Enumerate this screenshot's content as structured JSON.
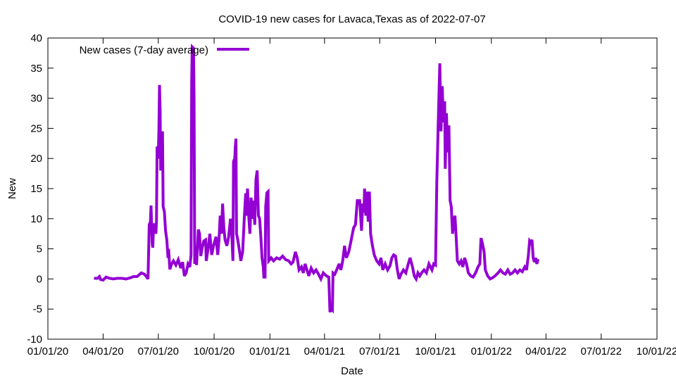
{
  "chart_data": {
    "type": "line",
    "title": "COVID-19 new cases for Lavaca,Texas as of 2022-07-07",
    "xlabel": "Date",
    "ylabel": "New",
    "x_range": [
      "2020-01-01",
      "2022-10-01"
    ],
    "x_ticks": [
      "01/01/20",
      "04/01/20",
      "07/01/20",
      "10/01/20",
      "01/01/21",
      "04/01/21",
      "07/01/21",
      "10/01/21",
      "01/01/22",
      "04/01/22",
      "07/01/22",
      "10/01/22"
    ],
    "ylim": [
      -10,
      40
    ],
    "y_ticks": [
      -10,
      -5,
      0,
      5,
      10,
      15,
      20,
      25,
      30,
      35,
      40
    ],
    "grid": false,
    "legend_position": "top-left",
    "series": [
      {
        "name": "New cases (7-day average)",
        "color": "#9400d3",
        "points": [
          [
            "2020-03-17",
            0.1
          ],
          [
            "2020-03-23",
            0.1
          ],
          [
            "2020-03-26",
            0.4
          ],
          [
            "2020-03-28",
            -0.1
          ],
          [
            "2020-04-01",
            -0.2
          ],
          [
            "2020-04-06",
            0.3
          ],
          [
            "2020-04-12",
            0.1
          ],
          [
            "2020-04-18",
            0.0
          ],
          [
            "2020-04-24",
            0.1
          ],
          [
            "2020-05-02",
            0.1
          ],
          [
            "2020-05-09",
            0.0
          ],
          [
            "2020-05-16",
            0.2
          ],
          [
            "2020-05-21",
            0.4
          ],
          [
            "2020-05-27",
            0.4
          ],
          [
            "2020-06-03",
            1.0
          ],
          [
            "2020-06-08",
            0.8
          ],
          [
            "2020-06-12",
            0.3
          ],
          [
            "2020-06-14",
            0.0
          ],
          [
            "2020-06-16",
            9.0
          ],
          [
            "2020-06-18",
            9.5
          ],
          [
            "2020-06-19",
            12.2
          ],
          [
            "2020-06-20",
            9.0
          ],
          [
            "2020-06-21",
            5.8
          ],
          [
            "2020-06-22",
            5.2
          ],
          [
            "2020-06-23",
            8.5
          ],
          [
            "2020-06-25",
            9.2
          ],
          [
            "2020-06-27",
            7.5
          ],
          [
            "2020-06-28",
            9.5
          ],
          [
            "2020-06-29",
            22.0
          ],
          [
            "2020-06-30",
            20.0
          ],
          [
            "2020-07-01",
            20.5
          ],
          [
            "2020-07-02",
            25.0
          ],
          [
            "2020-07-03",
            32.2
          ],
          [
            "2020-07-04",
            28.0
          ],
          [
            "2020-07-05",
            18.0
          ],
          [
            "2020-07-06",
            24.0
          ],
          [
            "2020-07-07",
            18.0
          ],
          [
            "2020-07-08",
            24.5
          ],
          [
            "2020-07-09",
            12.0
          ],
          [
            "2020-07-11",
            11.2
          ],
          [
            "2020-07-13",
            8.0
          ],
          [
            "2020-07-15",
            6.5
          ],
          [
            "2020-07-17",
            3.5
          ],
          [
            "2020-07-18",
            5.0
          ],
          [
            "2020-07-20",
            1.6
          ],
          [
            "2020-07-23",
            2.5
          ],
          [
            "2020-07-26",
            3.0
          ],
          [
            "2020-07-30",
            2.3
          ],
          [
            "2020-08-03",
            3.2
          ],
          [
            "2020-08-07",
            1.8
          ],
          [
            "2020-08-10",
            2.8
          ],
          [
            "2020-08-13",
            0.5
          ],
          [
            "2020-08-16",
            1.0
          ],
          [
            "2020-08-19",
            2.5
          ],
          [
            "2020-08-22",
            2.0
          ],
          [
            "2020-08-24",
            4.0
          ],
          [
            "2020-08-25",
            33.0
          ],
          [
            "2020-08-26",
            38.5
          ],
          [
            "2020-08-28",
            38.3
          ],
          [
            "2020-08-29",
            30.0
          ],
          [
            "2020-08-30",
            2.5
          ],
          [
            "2020-09-01",
            5.0
          ],
          [
            "2020-09-02",
            2.3
          ],
          [
            "2020-09-05",
            8.2
          ],
          [
            "2020-09-07",
            7.5
          ],
          [
            "2020-09-09",
            3.8
          ],
          [
            "2020-09-11",
            5.0
          ],
          [
            "2020-09-14",
            6.3
          ],
          [
            "2020-09-17",
            6.5
          ],
          [
            "2020-09-18",
            3.0
          ],
          [
            "2020-09-21",
            5.0
          ],
          [
            "2020-09-24",
            7.5
          ],
          [
            "2020-09-27",
            4.0
          ],
          [
            "2020-09-30",
            5.5
          ],
          [
            "2020-10-04",
            7.0
          ],
          [
            "2020-10-07",
            4.0
          ],
          [
            "2020-10-09",
            6.5
          ],
          [
            "2020-10-11",
            10.5
          ],
          [
            "2020-10-13",
            7.5
          ],
          [
            "2020-10-15",
            12.5
          ],
          [
            "2020-10-17",
            8.5
          ],
          [
            "2020-10-19",
            6.5
          ],
          [
            "2020-10-22",
            5.5
          ],
          [
            "2020-10-25",
            7.0
          ],
          [
            "2020-10-28",
            10.0
          ],
          [
            "2020-10-30",
            7.5
          ],
          [
            "2020-11-01",
            3.0
          ],
          [
            "2020-11-02",
            19.5
          ],
          [
            "2020-11-04",
            20.0
          ],
          [
            "2020-11-05",
            22.0
          ],
          [
            "2020-11-06",
            23.3
          ],
          [
            "2020-11-07",
            7.5
          ],
          [
            "2020-11-09",
            6.5
          ],
          [
            "2020-11-12",
            4.5
          ],
          [
            "2020-11-14",
            3.0
          ],
          [
            "2020-11-17",
            4.5
          ],
          [
            "2020-11-20",
            10.5
          ],
          [
            "2020-11-22",
            14.2
          ],
          [
            "2020-11-23",
            10.5
          ],
          [
            "2020-11-25",
            15.0
          ],
          [
            "2020-11-27",
            10.5
          ],
          [
            "2020-11-29",
            7.5
          ],
          [
            "2020-12-01",
            13.5
          ],
          [
            "2020-12-03",
            10.0
          ],
          [
            "2020-12-05",
            13.0
          ],
          [
            "2020-12-07",
            9.0
          ],
          [
            "2020-12-09",
            16.5
          ],
          [
            "2020-12-11",
            18.0
          ],
          [
            "2020-12-13",
            10.5
          ],
          [
            "2020-12-15",
            10.0
          ],
          [
            "2020-12-17",
            7.0
          ],
          [
            "2020-12-19",
            3.5
          ],
          [
            "2020-12-21",
            2.0
          ],
          [
            "2020-12-22",
            0.3
          ],
          [
            "2020-12-24",
            0.3
          ],
          [
            "2020-12-25",
            12.0
          ],
          [
            "2020-12-27",
            14.3
          ],
          [
            "2020-12-29",
            14.5
          ],
          [
            "2020-12-30",
            3.0
          ],
          [
            "2021-01-03",
            3.5
          ],
          [
            "2021-01-07",
            3.0
          ],
          [
            "2021-01-12",
            3.5
          ],
          [
            "2021-01-17",
            3.3
          ],
          [
            "2021-01-22",
            3.8
          ],
          [
            "2021-01-27",
            3.2
          ],
          [
            "2021-02-01",
            3.0
          ],
          [
            "2021-02-05",
            2.5
          ],
          [
            "2021-02-08",
            2.8
          ],
          [
            "2021-02-12",
            4.5
          ],
          [
            "2021-02-15",
            3.5
          ],
          [
            "2021-02-18",
            1.5
          ],
          [
            "2021-02-22",
            2.0
          ],
          [
            "2021-02-25",
            1.0
          ],
          [
            "2021-02-28",
            2.5
          ],
          [
            "2021-03-03",
            1.5
          ],
          [
            "2021-03-06",
            0.5
          ],
          [
            "2021-03-10",
            1.8
          ],
          [
            "2021-03-14",
            1.0
          ],
          [
            "2021-03-18",
            1.5
          ],
          [
            "2021-03-22",
            0.8
          ],
          [
            "2021-03-26",
            0.0
          ],
          [
            "2021-03-30",
            1.0
          ],
          [
            "2021-04-04",
            0.5
          ],
          [
            "2021-04-08",
            0.3
          ],
          [
            "2021-04-10",
            -5.5
          ],
          [
            "2021-04-12",
            -5.0
          ],
          [
            "2021-04-14",
            -5.2
          ],
          [
            "2021-04-15",
            1.0
          ],
          [
            "2021-04-18",
            0.8
          ],
          [
            "2021-04-21",
            1.5
          ],
          [
            "2021-04-25",
            2.5
          ],
          [
            "2021-04-28",
            1.5
          ],
          [
            "2021-05-01",
            3.0
          ],
          [
            "2021-05-04",
            5.5
          ],
          [
            "2021-05-07",
            3.5
          ],
          [
            "2021-05-11",
            4.5
          ],
          [
            "2021-05-15",
            6.5
          ],
          [
            "2021-05-19",
            8.5
          ],
          [
            "2021-05-22",
            9.0
          ],
          [
            "2021-05-25",
            13.0
          ],
          [
            "2021-05-29",
            13.0
          ],
          [
            "2021-06-01",
            8.0
          ],
          [
            "2021-06-03",
            12.5
          ],
          [
            "2021-06-05",
            11.0
          ],
          [
            "2021-06-06",
            15.0
          ],
          [
            "2021-06-08",
            10.5
          ],
          [
            "2021-06-10",
            14.5
          ],
          [
            "2021-06-12",
            9.5
          ],
          [
            "2021-06-14",
            14.5
          ],
          [
            "2021-06-16",
            7.5
          ],
          [
            "2021-06-19",
            5.5
          ],
          [
            "2021-06-22",
            4.0
          ],
          [
            "2021-06-26",
            3.0
          ],
          [
            "2021-06-30",
            2.5
          ],
          [
            "2021-07-03",
            3.5
          ],
          [
            "2021-07-06",
            1.5
          ],
          [
            "2021-07-10",
            2.5
          ],
          [
            "2021-07-14",
            1.5
          ],
          [
            "2021-07-18",
            2.2
          ],
          [
            "2021-07-21",
            3.5
          ],
          [
            "2021-07-24",
            4.0
          ],
          [
            "2021-07-27",
            3.8
          ],
          [
            "2021-07-30",
            1.5
          ],
          [
            "2021-08-02",
            0.0
          ],
          [
            "2021-08-05",
            0.8
          ],
          [
            "2021-08-09",
            1.5
          ],
          [
            "2021-08-13",
            1.0
          ],
          [
            "2021-08-17",
            2.5
          ],
          [
            "2021-08-20",
            3.5
          ],
          [
            "2021-08-24",
            2.0
          ],
          [
            "2021-08-27",
            0.5
          ],
          [
            "2021-08-30",
            0.0
          ],
          [
            "2021-09-02",
            1.0
          ],
          [
            "2021-09-05",
            0.5
          ],
          [
            "2021-09-08",
            1.0
          ],
          [
            "2021-09-12",
            1.5
          ],
          [
            "2021-09-16",
            1.0
          ],
          [
            "2021-09-20",
            2.5
          ],
          [
            "2021-09-25",
            1.5
          ],
          [
            "2021-09-28",
            2.5
          ],
          [
            "2021-10-01",
            2.3
          ],
          [
            "2021-10-03",
            16.0
          ],
          [
            "2021-10-06",
            28.0
          ],
          [
            "2021-10-08",
            35.8
          ],
          [
            "2021-10-10",
            24.5
          ],
          [
            "2021-10-12",
            32.0
          ],
          [
            "2021-10-14",
            26.0
          ],
          [
            "2021-10-16",
            29.5
          ],
          [
            "2021-10-17",
            18.3
          ],
          [
            "2021-10-19",
            27.5
          ],
          [
            "2021-10-21",
            21.0
          ],
          [
            "2021-10-23",
            25.5
          ],
          [
            "2021-10-25",
            13.0
          ],
          [
            "2021-10-27",
            12.0
          ],
          [
            "2021-10-29",
            7.5
          ],
          [
            "2021-10-31",
            9.5
          ],
          [
            "2021-11-02",
            10.5
          ],
          [
            "2021-11-04",
            7.0
          ],
          [
            "2021-11-06",
            3.0
          ],
          [
            "2021-11-09",
            2.5
          ],
          [
            "2021-11-12",
            3.0
          ],
          [
            "2021-11-15",
            2.0
          ],
          [
            "2021-11-18",
            3.5
          ],
          [
            "2021-11-21",
            2.5
          ],
          [
            "2021-11-24",
            1.0
          ],
          [
            "2021-11-28",
            0.5
          ],
          [
            "2021-12-02",
            0.3
          ],
          [
            "2021-12-06",
            1.0
          ],
          [
            "2021-12-10",
            2.0
          ],
          [
            "2021-12-13",
            2.5
          ],
          [
            "2021-12-15",
            6.8
          ],
          [
            "2021-12-17",
            6.0
          ],
          [
            "2021-12-20",
            4.5
          ],
          [
            "2021-12-22",
            1.5
          ],
          [
            "2021-12-26",
            0.5
          ],
          [
            "2021-12-30",
            0.0
          ],
          [
            "2022-01-03",
            0.2
          ],
          [
            "2022-01-07",
            0.5
          ],
          [
            "2022-01-12",
            1.0
          ],
          [
            "2022-01-16",
            1.5
          ],
          [
            "2022-01-20",
            1.0
          ],
          [
            "2022-01-24",
            0.8
          ],
          [
            "2022-01-28",
            1.5
          ],
          [
            "2022-02-01",
            0.8
          ],
          [
            "2022-02-05",
            1.0
          ],
          [
            "2022-02-09",
            1.5
          ],
          [
            "2022-02-13",
            1.0
          ],
          [
            "2022-02-17",
            1.5
          ],
          [
            "2022-02-21",
            1.2
          ],
          [
            "2022-02-25",
            2.0
          ],
          [
            "2022-02-28",
            1.5
          ],
          [
            "2022-03-03",
            4.0
          ],
          [
            "2022-03-05",
            6.3
          ],
          [
            "2022-03-07",
            6.0
          ],
          [
            "2022-03-09",
            6.5
          ],
          [
            "2022-03-11",
            3.5
          ],
          [
            "2022-03-13",
            2.8
          ],
          [
            "2022-03-15",
            3.5
          ],
          [
            "2022-03-17",
            2.5
          ],
          [
            "2022-03-19",
            3.3
          ]
        ]
      }
    ]
  }
}
